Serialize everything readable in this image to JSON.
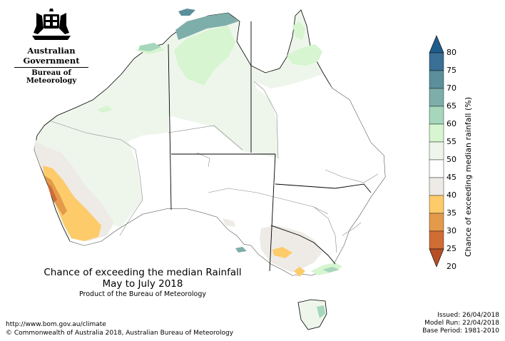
{
  "logo": {
    "government": "Australian Government",
    "bureau": "Bureau of Meteorology"
  },
  "map": {
    "title_line1": "Chance of exceeding the median Rainfall",
    "title_line2": "May to July 2018",
    "product": "Product of the Bureau of Meteorology"
  },
  "legend": {
    "label": "Chance of exceeding median rainfall (%)",
    "ticks": [
      "80",
      "75",
      "70",
      "65",
      "60",
      "55",
      "50",
      "45",
      "40",
      "35",
      "30",
      "25",
      "20"
    ],
    "colors": {
      "c75_80": "#3a6f96",
      "c70_75": "#5b8f9c",
      "c65_70": "#7eaeaa",
      "c60_65": "#a6d7bc",
      "c55_60": "#d6f5d0",
      "c50_55": "#eef6ec",
      "c45_50": "#ffffff",
      "c40_45": "#eeebe6",
      "c35_40": "#fdcb6a",
      "c30_35": "#e39a4b",
      "c25_30": "#cf6d35",
      "c20_25": "#b64e26"
    }
  },
  "footer": {
    "url": "http://www.bom.gov.au/climate",
    "copyright": "© Commonwealth of Australia 2018, Australian Bureau of Meteorology",
    "issued": "Issued: 26/04/2018",
    "model_run": "Model Run: 22/04/2018",
    "base_period": "Base Period: 1981-2010"
  }
}
